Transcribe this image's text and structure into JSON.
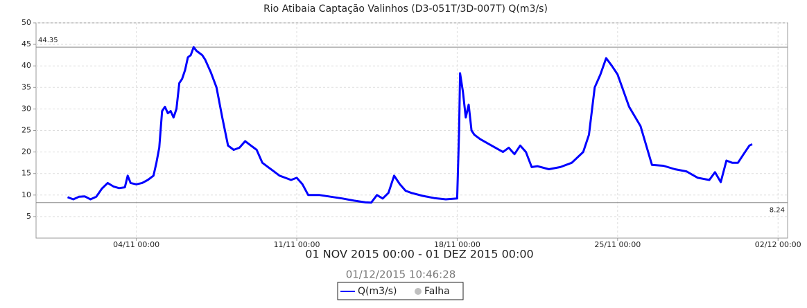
{
  "chart_data": {
    "type": "line",
    "title": "Rio Atibaia Captação Valinhos (D3-051T/3D-007T) Q(m3/s)",
    "subtitle": "01 NOV 2015 00:00 - 01 DEZ 2015 00:00",
    "timestamp": "01/12/2015 10:46:28",
    "x": [
      "01/11 00:00",
      "01/11 06:00",
      "01/11 12:00",
      "01/11 18:00",
      "02/11 00:00",
      "02/11 06:00",
      "02/11 12:00",
      "02/11 18:00",
      "03/11 00:00",
      "03/11 06:00",
      "03/11 12:00",
      "03/11 15:00",
      "03/11 18:00",
      "04/11 00:00",
      "04/11 06:00",
      "04/11 12:00",
      "04/11 18:00",
      "04/11 21:00",
      "05/11 00:00",
      "05/11 03:00",
      "05/11 06:00",
      "05/11 09:00",
      "05/11 12:00",
      "05/11 15:00",
      "05/11 18:00",
      "05/11 21:00",
      "06/11 00:00",
      "06/11 03:00",
      "06/11 06:00",
      "06/11 09:00",
      "06/11 12:00",
      "06/11 15:00",
      "06/11 18:00",
      "06/11 21:00",
      "07/11 00:00",
      "07/11 06:00",
      "07/11 12:00",
      "07/11 18:00",
      "08/11 00:00",
      "08/11 06:00",
      "08/11 12:00",
      "08/11 18:00",
      "09/11 00:00",
      "09/11 06:00",
      "09/11 12:00",
      "09/11 18:00",
      "10/11 00:00",
      "10/11 06:00",
      "10/11 12:00",
      "10/11 18:00",
      "11/11 00:00",
      "11/11 06:00",
      "11/11 12:00",
      "11/11 18:00",
      "12/11 00:00",
      "12/11 12:00",
      "13/11 00:00",
      "13/11 12:00",
      "14/11 00:00",
      "14/11 06:00",
      "14/11 12:00",
      "14/11 18:00",
      "15/11 00:00",
      "15/11 06:00",
      "15/11 12:00",
      "15/11 18:00",
      "16/11 00:00",
      "16/11 12:00",
      "17/11 00:00",
      "17/11 12:00",
      "18/11 00:00",
      "18/11 02:00",
      "18/11 03:00",
      "18/11 06:00",
      "18/11 09:00",
      "18/11 12:00",
      "18/11 15:00",
      "18/11 18:00",
      "19/11 00:00",
      "19/11 12:00",
      "20/11 00:00",
      "20/11 06:00",
      "20/11 12:00",
      "20/11 18:00",
      "21/11 00:00",
      "21/11 06:00",
      "21/11 12:00",
      "22/11 00:00",
      "22/11 12:00",
      "23/11 00:00",
      "23/11 12:00",
      "23/11 18:00",
      "24/11 00:00",
      "24/11 06:00",
      "24/11 12:00",
      "24/11 18:00",
      "25/11 00:00",
      "25/11 12:00",
      "26/11 00:00",
      "26/11 12:00",
      "27/11 00:00",
      "27/11 12:00",
      "28/11 00:00",
      "28/11 12:00",
      "29/11 00:00",
      "29/11 06:00",
      "29/11 12:00",
      "29/11 18:00",
      "30/11 00:00",
      "30/11 06:00",
      "30/11 12:00",
      "30/11 18:00",
      "30/11 21:00"
    ],
    "series": [
      {
        "name": "Q(m3/s)",
        "color": "#0000ff",
        "values": [
          9.5,
          9.0,
          9.6,
          9.7,
          9.0,
          9.6,
          11.5,
          12.8,
          12.0,
          11.6,
          11.8,
          14.5,
          12.8,
          12.5,
          12.8,
          13.5,
          14.5,
          17.5,
          21,
          29.5,
          30.5,
          29,
          29.5,
          28,
          30,
          36,
          37,
          39,
          42,
          42.5,
          44.35,
          43.5,
          43,
          42.5,
          41.5,
          38.5,
          35,
          28,
          21.5,
          20.5,
          21,
          22.5,
          21.5,
          20.5,
          17.5,
          16.5,
          15.5,
          14.5,
          14,
          13.5,
          14,
          12.5,
          10,
          10,
          10,
          9.6,
          9.2,
          8.7,
          8.3,
          8.24,
          10,
          9.2,
          10.5,
          14.5,
          12.5,
          11,
          10.5,
          9.8,
          9.3,
          9.0,
          9.2,
          25,
          38.3,
          34,
          28,
          31,
          25,
          24,
          23,
          21.5,
          20,
          21,
          19.5,
          21.5,
          20,
          16.5,
          16.7,
          16,
          16.5,
          17.5,
          20,
          24,
          35,
          38,
          41.8,
          40,
          38,
          30.5,
          26,
          17,
          16.8,
          16,
          15.5,
          14,
          13.5,
          15.3,
          13,
          18,
          17.5,
          17.5,
          19.5,
          21.5,
          21.8
        ]
      }
    ],
    "falha": {
      "name": "Falha",
      "color": "#c0c0c0"
    },
    "markers": [
      44.35,
      8.24
    ],
    "xlim": [
      "30/10 15:00",
      "02/12 10:00"
    ],
    "xticks": [
      "28/10 00:00",
      "04/11 00:00",
      "11/11 00:00",
      "18/11 00:00",
      "25/11 00:00",
      "02/12 00:00"
    ],
    "ylim": [
      0,
      50
    ],
    "yticks": [
      5,
      10,
      15,
      20,
      25,
      30,
      35,
      40,
      45,
      50
    ],
    "grid": true
  }
}
